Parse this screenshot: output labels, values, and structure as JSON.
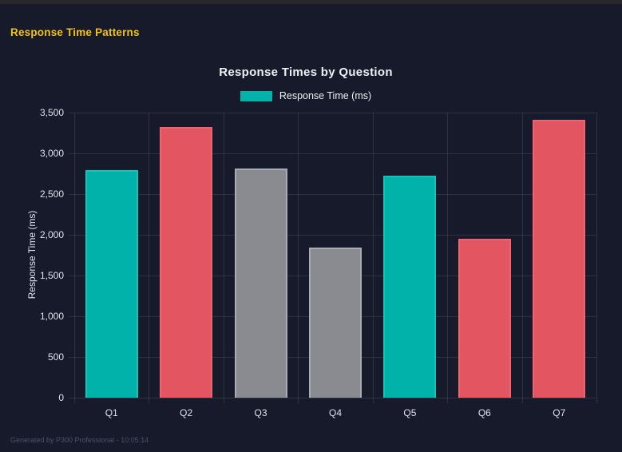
{
  "page": {
    "heading": "Response Time Patterns",
    "footer": "Generated by P300 Professional - 10:05:14"
  },
  "colors": {
    "background": "#171a2a",
    "top_strip": "#282828",
    "heading_text": "#f2c313",
    "grid": "rgba(255,255,255,0.10)",
    "axis_text": "#dfe3ec",
    "teal": "#00b2a9",
    "red": "#e25561",
    "gray": "#8a8b90"
  },
  "chart_data": {
    "type": "bar",
    "title": "Response Times by Question",
    "legend": [
      {
        "label": "Response Time (ms)",
        "color": "#00b2a9"
      }
    ],
    "legend_position": "top",
    "categories": [
      "Q1",
      "Q2",
      "Q3",
      "Q4",
      "Q5",
      "Q6",
      "Q7"
    ],
    "values": [
      2795,
      3325,
      2810,
      1845,
      2725,
      1950,
      3410
    ],
    "bar_colors": [
      "#00b2a9",
      "#e25561",
      "#8a8b90",
      "#8a8b90",
      "#00b2a9",
      "#e25561",
      "#e25561"
    ],
    "bar_border_colors": [
      "#12c4b8",
      "#ee6570",
      "#abacb3",
      "#abacb3",
      "#12c4b8",
      "#ee6570",
      "#ee6570"
    ],
    "xlabel": "",
    "ylabel": "Response Time (ms)",
    "ylim": [
      0,
      3500
    ],
    "ytick_step": 500,
    "grid": true
  }
}
